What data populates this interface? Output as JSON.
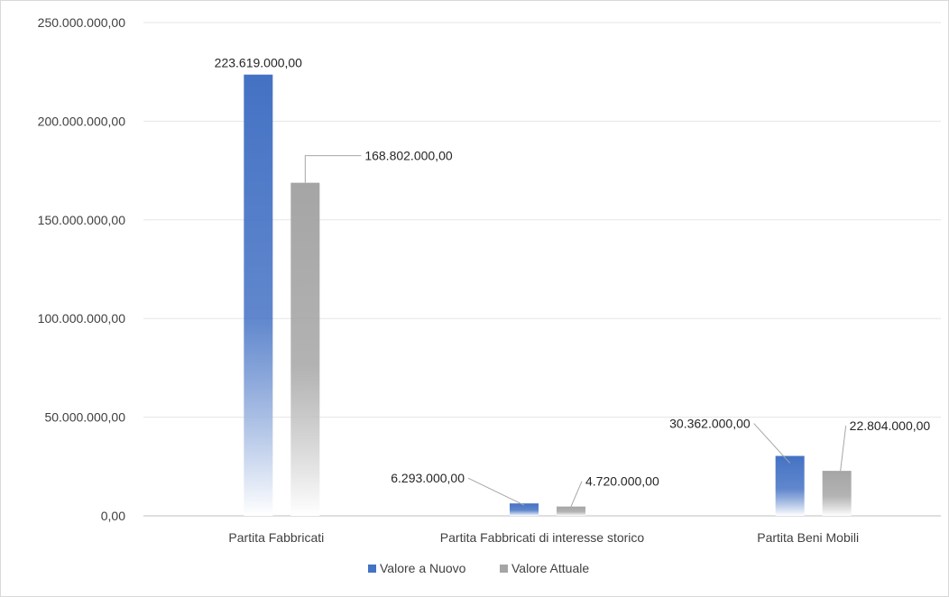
{
  "chart_data": {
    "type": "bar",
    "categories": [
      "Partita Fabbricati",
      "Partita Fabbricati di interesse storico",
      "Partita Beni Mobili"
    ],
    "series": [
      {
        "name": "Valore a Nuovo",
        "values": [
          223619000,
          6293000,
          30362000
        ],
        "labels": [
          "223.619.000,00",
          "6.293.000,00",
          "30.362.000,00"
        ],
        "color": "#4472c4"
      },
      {
        "name": "Valore Attuale",
        "values": [
          168802000,
          4720000,
          22804000
        ],
        "labels": [
          "168.802.000,00",
          "4.720.000,00",
          "22.804.000,00"
        ],
        "color": "#a5a5a5"
      }
    ],
    "ylim": [
      0,
      250000000
    ],
    "yticks": [
      0,
      50000000,
      100000000,
      150000000,
      200000000,
      250000000
    ],
    "ytick_labels": [
      "0,00",
      "50.000.000,00",
      "100.000.000,00",
      "150.000.000,00",
      "200.000.000,00",
      "250.000.000,00"
    ],
    "grid": true,
    "legend_position": "bottom",
    "title": "",
    "xlabel": "",
    "ylabel": ""
  }
}
